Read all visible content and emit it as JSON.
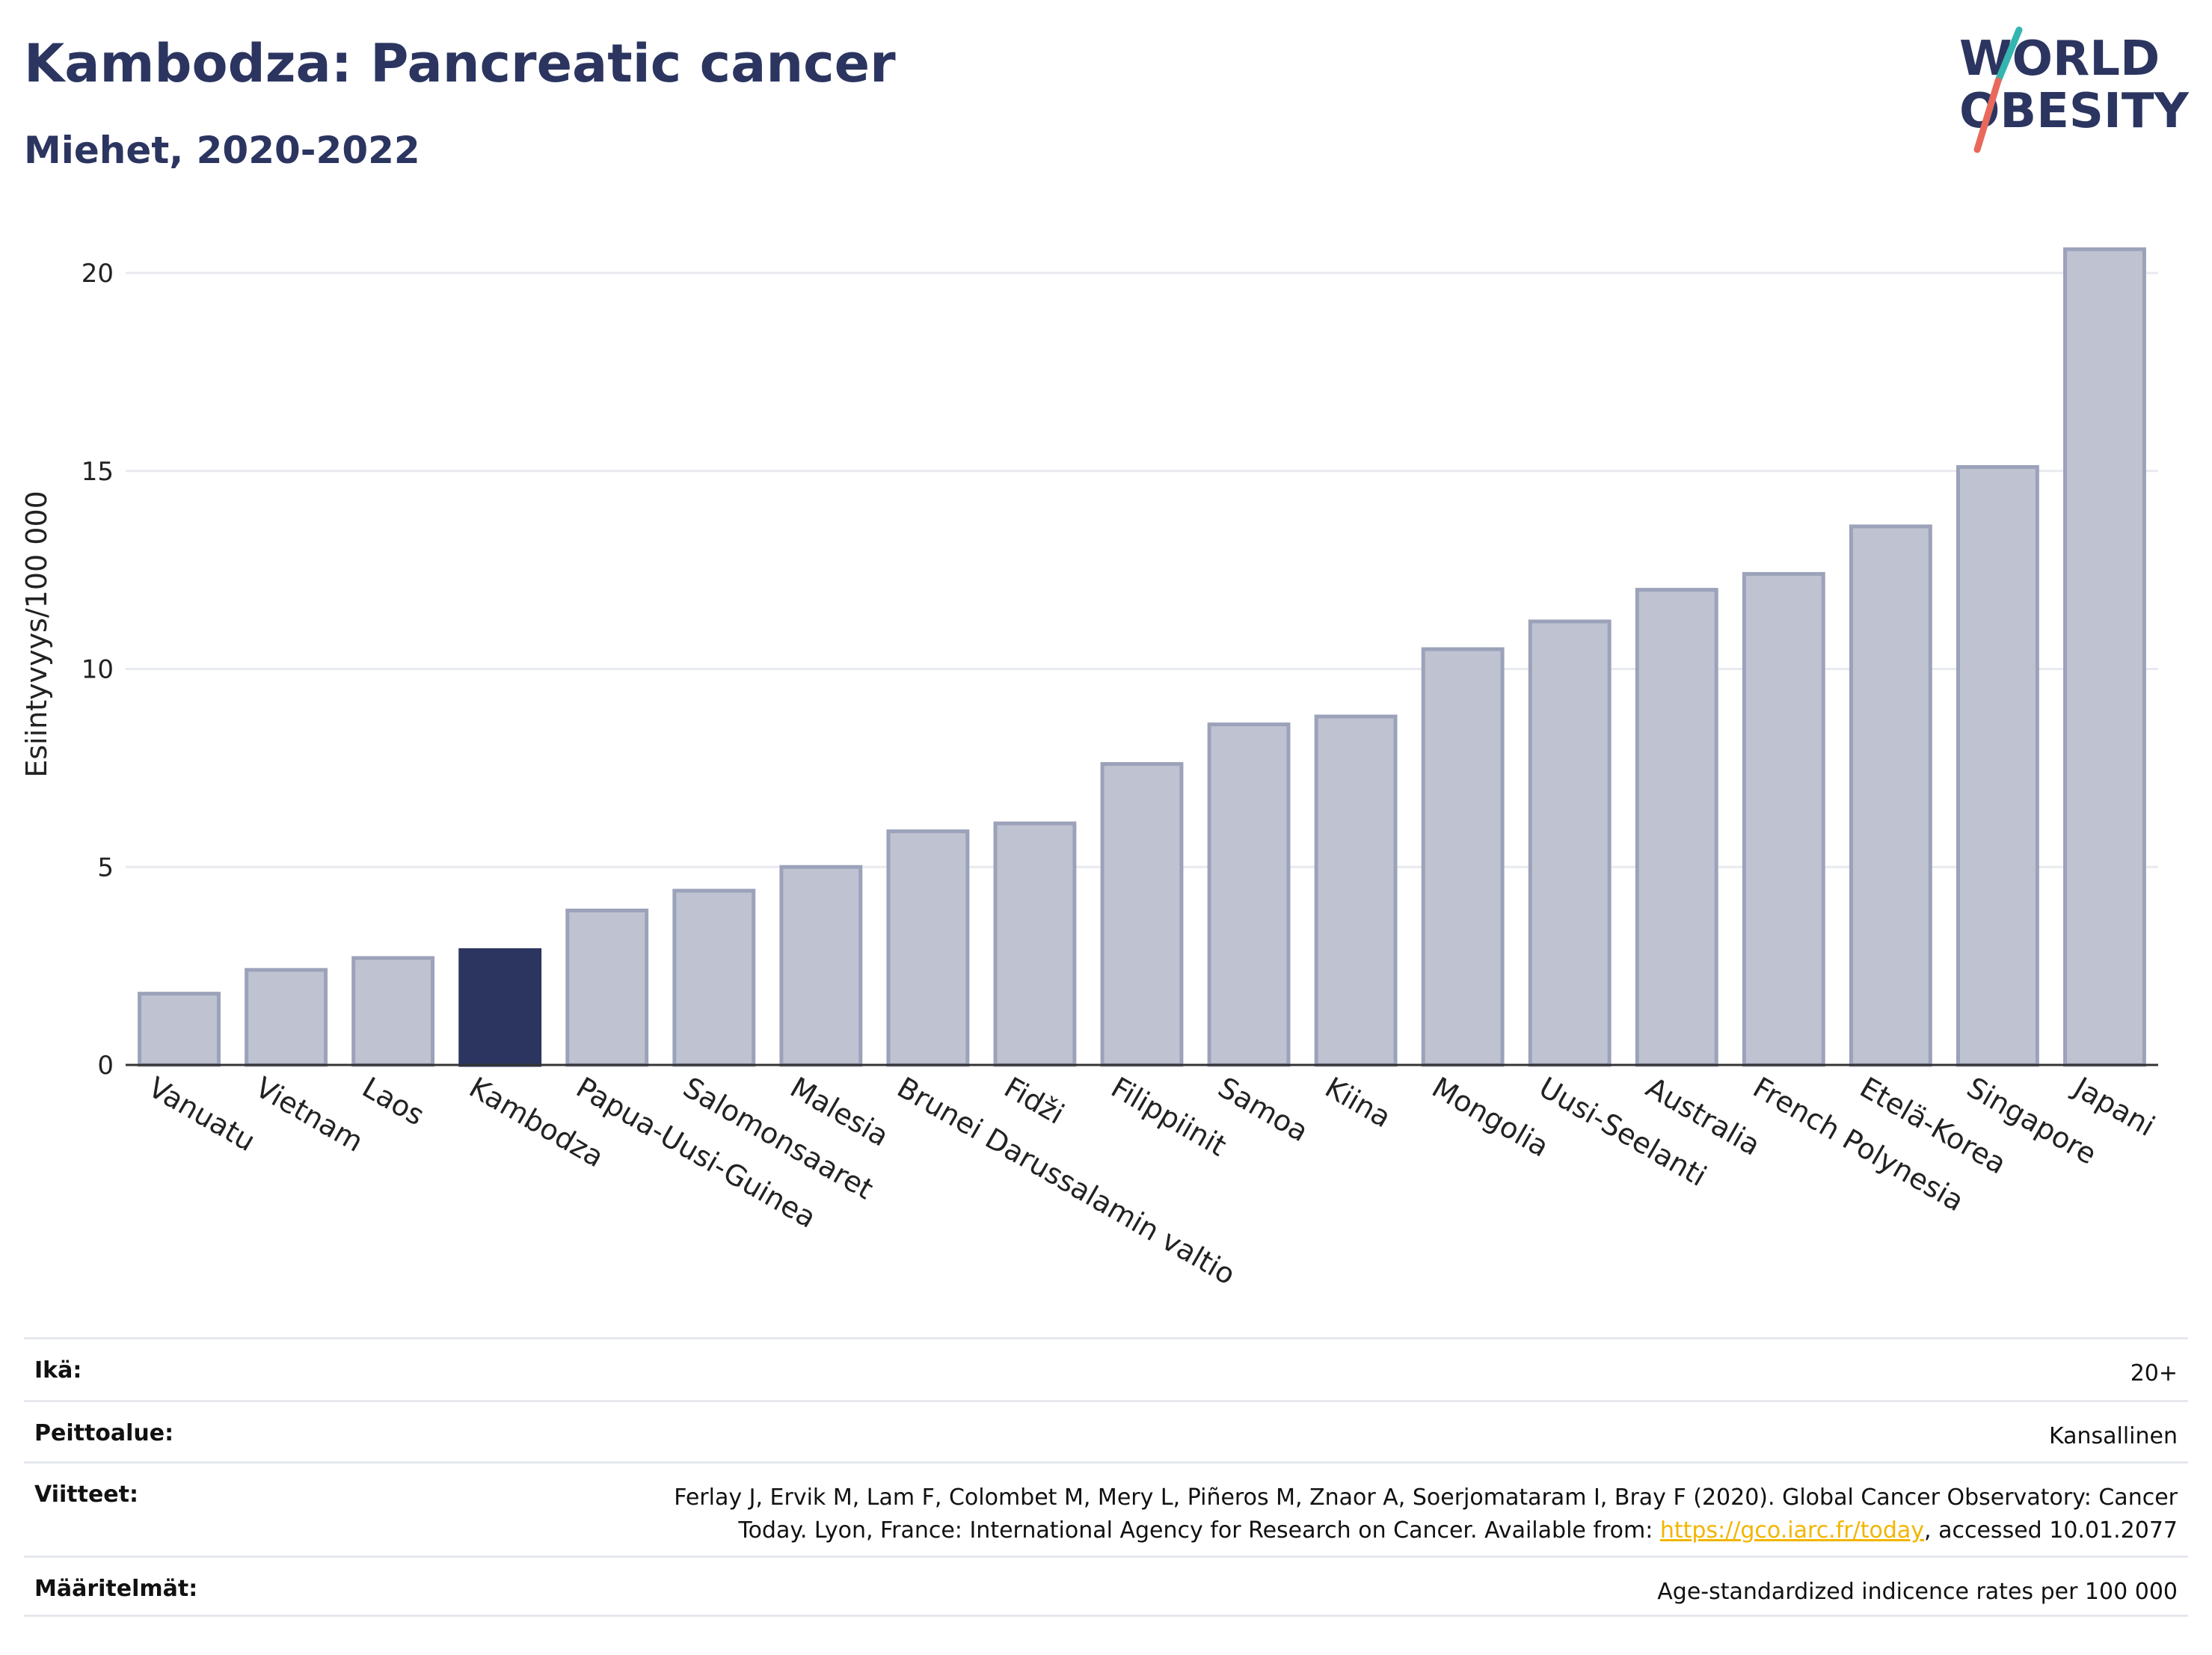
{
  "header": {
    "title": "Kambodza: Pancreatic cancer",
    "subtitle": "Miehet, 2020-2022"
  },
  "logo": {
    "line1": "WORLD",
    "line2": "OBESITY"
  },
  "chart_data": {
    "type": "bar",
    "ylabel": "Esiintyvyys/100 000",
    "ylim": [
      0,
      21.5
    ],
    "yticks": [
      0,
      5,
      10,
      15,
      20
    ],
    "grid": true,
    "highlight": "Kambodza",
    "categories": [
      "Vanuatu",
      "Vietnam",
      "Laos",
      "Kambodza",
      "Papua-Uusi-Guinea",
      "Salomonsaaret",
      "Malesia",
      "Brunei Darussalamin valtio",
      "Fidži",
      "Filippiinit",
      "Samoa",
      "Kiina",
      "Mongolia",
      "Uusi-Seelanti",
      "Australia",
      "French Polynesia",
      "Etelä-Korea",
      "Singapore",
      "Japani"
    ],
    "values": [
      1.8,
      2.4,
      2.7,
      2.9,
      3.9,
      4.4,
      5.0,
      5.9,
      6.1,
      7.6,
      8.6,
      8.8,
      10.5,
      11.2,
      12.0,
      12.4,
      13.6,
      15.1,
      20.6
    ],
    "colors": {
      "bar": "#bfc3d1",
      "bar_border": "#9ba2b9",
      "highlight": "#2b3560",
      "axis": "#333333",
      "grid": "#e8eaf0"
    }
  },
  "info": {
    "age_label": "Ikä:",
    "age_value": "20+",
    "coverage_label": "Peittoalue:",
    "coverage_value": "Kansallinen",
    "refs_label": "Viitteet:",
    "refs_line1": "Ferlay J, Ervik M, Lam F, Colombet M, Mery L, Piñeros M, Znaor A, Soerjomataram I, Bray F (2020). Global Cancer Observatory: Cancer",
    "refs_line2_pre": "Today. Lyon, France: International Agency for Research on Cancer. Available from: ",
    "refs_link": "https://gco.iarc.fr/today",
    "refs_line2_post": ", accessed 10.01.2077",
    "defs_label": "Määritelmät:",
    "defs_value": "Age-standardized indicence rates per 100 000"
  }
}
